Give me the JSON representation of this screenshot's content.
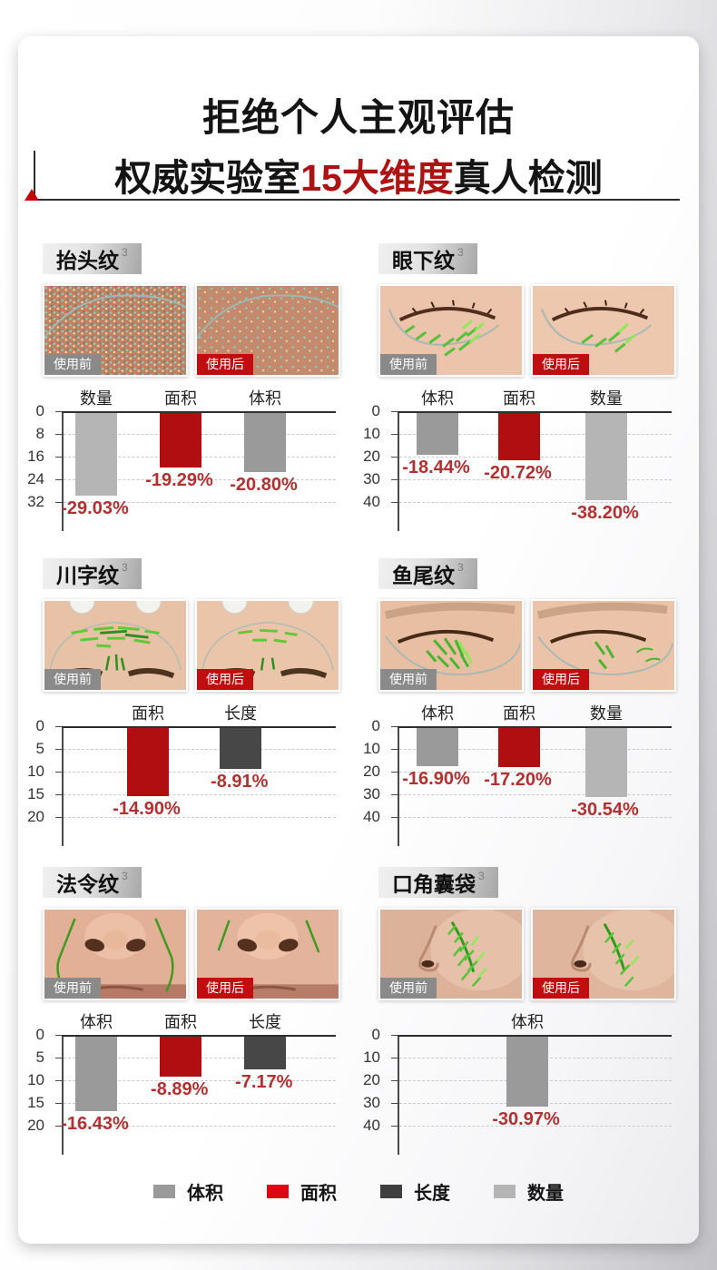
{
  "header": {
    "title": "拒绝个人主观评估",
    "subtitle_prefix": "权威实验室",
    "subtitle_highlight": "15大维度",
    "subtitle_suffix": "真人检测",
    "highlight_color": "#ad1312"
  },
  "labels": {
    "before": "使用前",
    "after": "使用后"
  },
  "colors": {
    "volume": "#9a9a9a",
    "area": "#b00e10",
    "length": "#474747",
    "count": "#b5b5b5",
    "value_text": "#b23030",
    "after_badge": "#c20d10",
    "before_badge": "#8a8a8a"
  },
  "legend": [
    {
      "label": "体积",
      "color": "#9a9a9a"
    },
    {
      "label": "面积",
      "color": "#dc0713"
    },
    {
      "label": "长度",
      "color": "#3f3f3f"
    },
    {
      "label": "数量",
      "color": "#b5b5b5"
    }
  ],
  "chart_data": [
    {
      "type": "bar",
      "title": "抬头纹",
      "title_sup": "3",
      "categories": [
        "数量",
        "面积",
        "体积"
      ],
      "values": [
        -29.03,
        -19.29,
        -20.8
      ],
      "value_labels": [
        "-29.03%",
        "-19.29%",
        "-20.80%"
      ],
      "color_keys": [
        "count",
        "area",
        "volume"
      ],
      "yticks": [
        0,
        8,
        16,
        24,
        32
      ],
      "ymax": 32,
      "ylim": [
        0,
        -32
      ],
      "bar_centers_pct": [
        12,
        43,
        74
      ],
      "grid": "dashed-horizontal",
      "legend_position": "shared-bottom"
    },
    {
      "type": "bar",
      "title": "眼下纹",
      "title_sup": "3",
      "categories": [
        "体积",
        "面积",
        "数量"
      ],
      "values": [
        -18.44,
        -20.72,
        -38.2
      ],
      "value_labels": [
        "-18.44%",
        "-20.72%",
        "-38.20%"
      ],
      "color_keys": [
        "volume",
        "area",
        "count"
      ],
      "yticks": [
        0,
        10,
        20,
        30,
        40
      ],
      "ymax": 40,
      "ylim": [
        0,
        -40
      ],
      "bar_centers_pct": [
        14,
        44,
        76
      ],
      "grid": "dashed-horizontal",
      "legend_position": "shared-bottom"
    },
    {
      "type": "bar",
      "title": "川字纹",
      "title_sup": "3",
      "categories": [
        "面积",
        "长度"
      ],
      "values": [
        -14.9,
        -8.91
      ],
      "value_labels": [
        "-14.90%",
        "-8.91%"
      ],
      "color_keys": [
        "area",
        "length"
      ],
      "yticks": [
        0,
        5,
        10,
        15,
        20
      ],
      "ymax": 20,
      "ylim": [
        0,
        -20
      ],
      "bar_centers_pct": [
        31,
        65
      ],
      "grid": "dashed-horizontal",
      "legend_position": "shared-bottom"
    },
    {
      "type": "bar",
      "title": "鱼尾纹",
      "title_sup": "3",
      "categories": [
        "体积",
        "面积",
        "数量"
      ],
      "values": [
        -16.9,
        -17.2,
        -30.54
      ],
      "value_labels": [
        "-16.90%",
        "-17.20%",
        "-30.54%"
      ],
      "color_keys": [
        "volume",
        "area",
        "count"
      ],
      "yticks": [
        0,
        10,
        20,
        30,
        40
      ],
      "ymax": 40,
      "ylim": [
        0,
        -40
      ],
      "bar_centers_pct": [
        14,
        44,
        76
      ],
      "grid": "dashed-horizontal",
      "legend_position": "shared-bottom"
    },
    {
      "type": "bar",
      "title": "法令纹",
      "title_sup": "3",
      "categories": [
        "体积",
        "面积",
        "长度"
      ],
      "values": [
        -16.43,
        -8.89,
        -7.17
      ],
      "value_labels": [
        "-16.43%",
        "-8.89%",
        "-7.17%"
      ],
      "color_keys": [
        "volume",
        "area",
        "length"
      ],
      "yticks": [
        0,
        5,
        10,
        15,
        20
      ],
      "ymax": 20,
      "ylim": [
        0,
        -20
      ],
      "bar_centers_pct": [
        12,
        43,
        74
      ],
      "grid": "dashed-horizontal",
      "legend_position": "shared-bottom"
    },
    {
      "type": "bar",
      "title": "口角囊袋",
      "title_sup": "3",
      "categories": [
        "体积"
      ],
      "values": [
        -30.97
      ],
      "value_labels": [
        "-30.97%"
      ],
      "color_keys": [
        "volume"
      ],
      "yticks": [
        0,
        10,
        20,
        30,
        40
      ],
      "ymax": 40,
      "ylim": [
        0,
        -40
      ],
      "bar_centers_pct": [
        47
      ],
      "grid": "dashed-horizontal",
      "legend_position": "shared-bottom"
    }
  ]
}
